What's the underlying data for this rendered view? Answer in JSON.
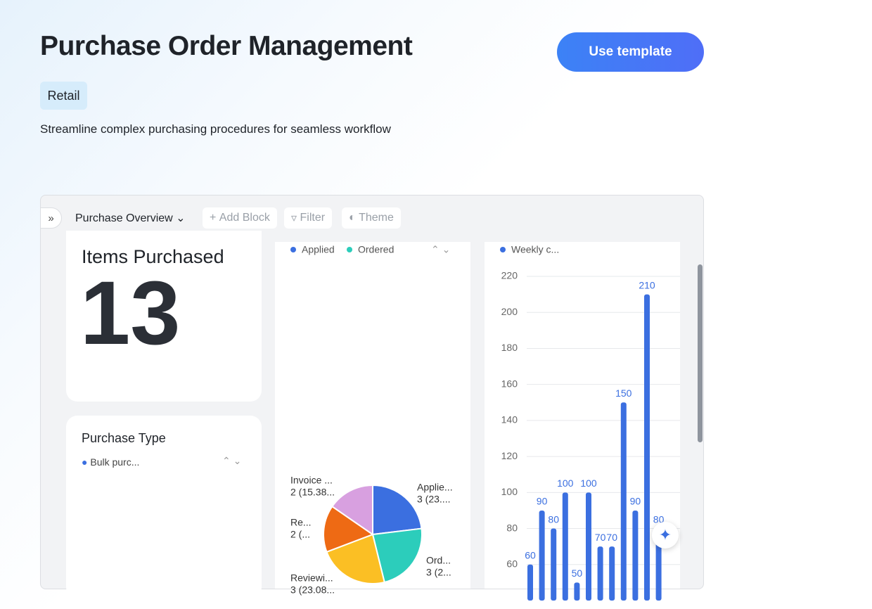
{
  "header": {
    "title": "Purchase Order Management",
    "button": "Use template",
    "tag": "Retail",
    "description": "Streamline complex purchasing procedures for seamless workflow"
  },
  "toolbar": {
    "view": "Purchase Overview",
    "add_block": "Add Block",
    "filter": "Filter",
    "theme": "Theme"
  },
  "items_card": {
    "title": "Items Purchased",
    "value": 13
  },
  "purchase_type": {
    "title": "Purchase Type",
    "legend": [
      "Bulk purc..."
    ]
  },
  "chart_data": [
    {
      "type": "pie",
      "legend": [
        "Applied",
        "Ordered"
      ],
      "categories": [
        "Applie...",
        "Ord...",
        "Reviewi...",
        "Re...",
        "Invoice ..."
      ],
      "values": [
        3,
        3,
        3,
        2,
        2
      ],
      "value_labels": [
        "3 (23....",
        "3 (2...",
        "3 (23.08...",
        "2 (...",
        "2 (15.38..."
      ],
      "colors": [
        "#3b6fe0",
        "#2ccdbb",
        "#fbbf24",
        "#ee6a14",
        "#d8a0e0"
      ]
    },
    {
      "type": "bar",
      "categories": [
        null,
        null,
        null,
        null,
        null,
        null,
        null,
        null,
        null,
        null,
        null,
        null
      ],
      "series": [
        {
          "name": "Weekly c...",
          "color": "#3b6fe0",
          "values": [
            60,
            90,
            80,
            100,
            50,
            100,
            70,
            70,
            150,
            90,
            210,
            80
          ]
        }
      ],
      "ylim": [
        40,
        220
      ],
      "yticks": [
        60,
        80,
        100,
        120,
        140,
        160,
        180,
        200,
        220
      ],
      "grid": true
    }
  ]
}
